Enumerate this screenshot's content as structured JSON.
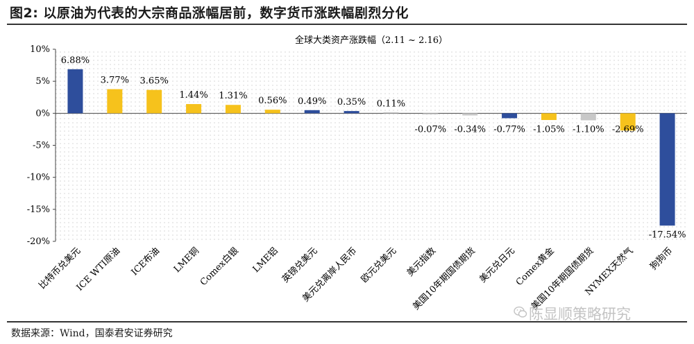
{
  "figure": {
    "title": "图2:  以原油为代表的大宗商品涨幅居前，数字货币涨跌幅剧烈分化",
    "source": "数据来源：Wind，国泰君安证券研究",
    "watermark": "陈显顺策略研究"
  },
  "colors": {
    "blue": "#2E4E9C",
    "yellow": "#F6C21C",
    "gray": "#C8C8C8",
    "axis": "#444444",
    "grid_dots": "#cfcfcf"
  },
  "chart_data": {
    "type": "bar",
    "title": "全球大类资产涨跌幅（2.11 ~ 2.16）",
    "ylim": [
      -20,
      10
    ],
    "yticks": [
      10,
      5,
      0,
      -5,
      -10,
      -15,
      -20
    ],
    "ytick_labels": [
      "10%",
      "5%",
      "0%",
      "-5%",
      "-10%",
      "-15%",
      "-20%"
    ],
    "grid": "dotted background",
    "categories": [
      "比特币兑美元",
      "ICE WTI原油",
      "ICE布油",
      "LME铜",
      "Comex白银",
      "LME铝",
      "英镑兑美元",
      "美元兑离岸人民币",
      "欧元兑美元",
      "美元指数",
      "美国10年期国债期货",
      "美元兑日元",
      "Comex黄金",
      "美国10年期国债期货",
      "NYMEX天然气",
      "狗狗币"
    ],
    "values": [
      6.88,
      3.77,
      3.65,
      1.44,
      1.31,
      0.56,
      0.49,
      0.35,
      0.11,
      -0.07,
      -0.34,
      -0.77,
      -1.05,
      -1.1,
      -2.69,
      -17.54
    ],
    "value_labels": [
      "6.88%",
      "3.77%",
      "3.65%",
      "1.44%",
      "1.31%",
      "0.56%",
      "0.49%",
      "0.35%",
      "0.11%",
      "-0.07%",
      "-0.34%",
      "-0.77%",
      "-1.05%",
      "-1.10%",
      "-2.69%",
      "-17.54%"
    ],
    "bar_colors": [
      "blue",
      "yellow",
      "yellow",
      "yellow",
      "yellow",
      "yellow",
      "blue",
      "blue",
      "gray",
      "gray",
      "gray",
      "blue",
      "yellow",
      "gray",
      "yellow",
      "blue"
    ]
  }
}
